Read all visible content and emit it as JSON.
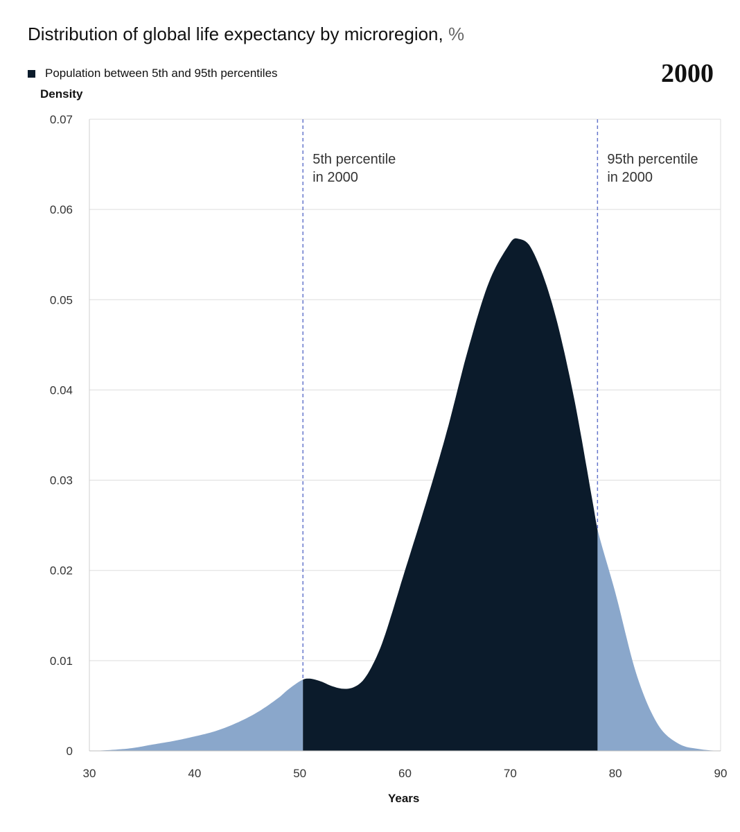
{
  "title": "Distribution of global life expectancy by microregion,",
  "title_unit": "%",
  "legend": {
    "label": "Population between 5th and 95th percentiles"
  },
  "year_badge": "2000",
  "colors": {
    "inner": "#0b1b2b",
    "tails": "#8aa7cb",
    "percentile_line": "#6677cc",
    "grid": "#dddddd"
  },
  "chart_data": {
    "type": "area",
    "title": "Distribution of global life expectancy by microregion, %",
    "xlabel": "Years",
    "ylabel": "Density",
    "xlim": [
      30,
      90
    ],
    "ylim": [
      0,
      0.07
    ],
    "x_ticks": [
      "30",
      "40",
      "50",
      "60",
      "70",
      "80",
      "90"
    ],
    "y_ticks": [
      "0",
      "0.01",
      "0.02",
      "0.03",
      "0.04",
      "0.05",
      "0.06",
      "0.07"
    ],
    "grid": true,
    "x": [
      30,
      32,
      34,
      36,
      38,
      40,
      42,
      44,
      46,
      48,
      49,
      50.3,
      51,
      52,
      53,
      54,
      55,
      56,
      57,
      58,
      60,
      62,
      64,
      66,
      68,
      70,
      70.6,
      72,
      74,
      76,
      78,
      78.3,
      80,
      82,
      84,
      86,
      88,
      90
    ],
    "y": [
      0,
      0.0001,
      0.0003,
      0.0007,
      0.0011,
      0.0016,
      0.0022,
      0.0031,
      0.0043,
      0.0059,
      0.0069,
      0.0079,
      0.008,
      0.0077,
      0.0072,
      0.0069,
      0.007,
      0.0078,
      0.0097,
      0.0125,
      0.02,
      0.0275,
      0.0355,
      0.0445,
      0.052,
      0.0563,
      0.0568,
      0.0557,
      0.0495,
      0.0395,
      0.0265,
      0.0245,
      0.0175,
      0.0085,
      0.003,
      0.0008,
      0.0002,
      0
    ],
    "percentiles": [
      {
        "value": 50.3,
        "label_line1": "5th percentile",
        "label_line2": "in 2000"
      },
      {
        "value": 78.3,
        "label_line1": "95th percentile",
        "label_line2": "in 2000"
      }
    ]
  }
}
